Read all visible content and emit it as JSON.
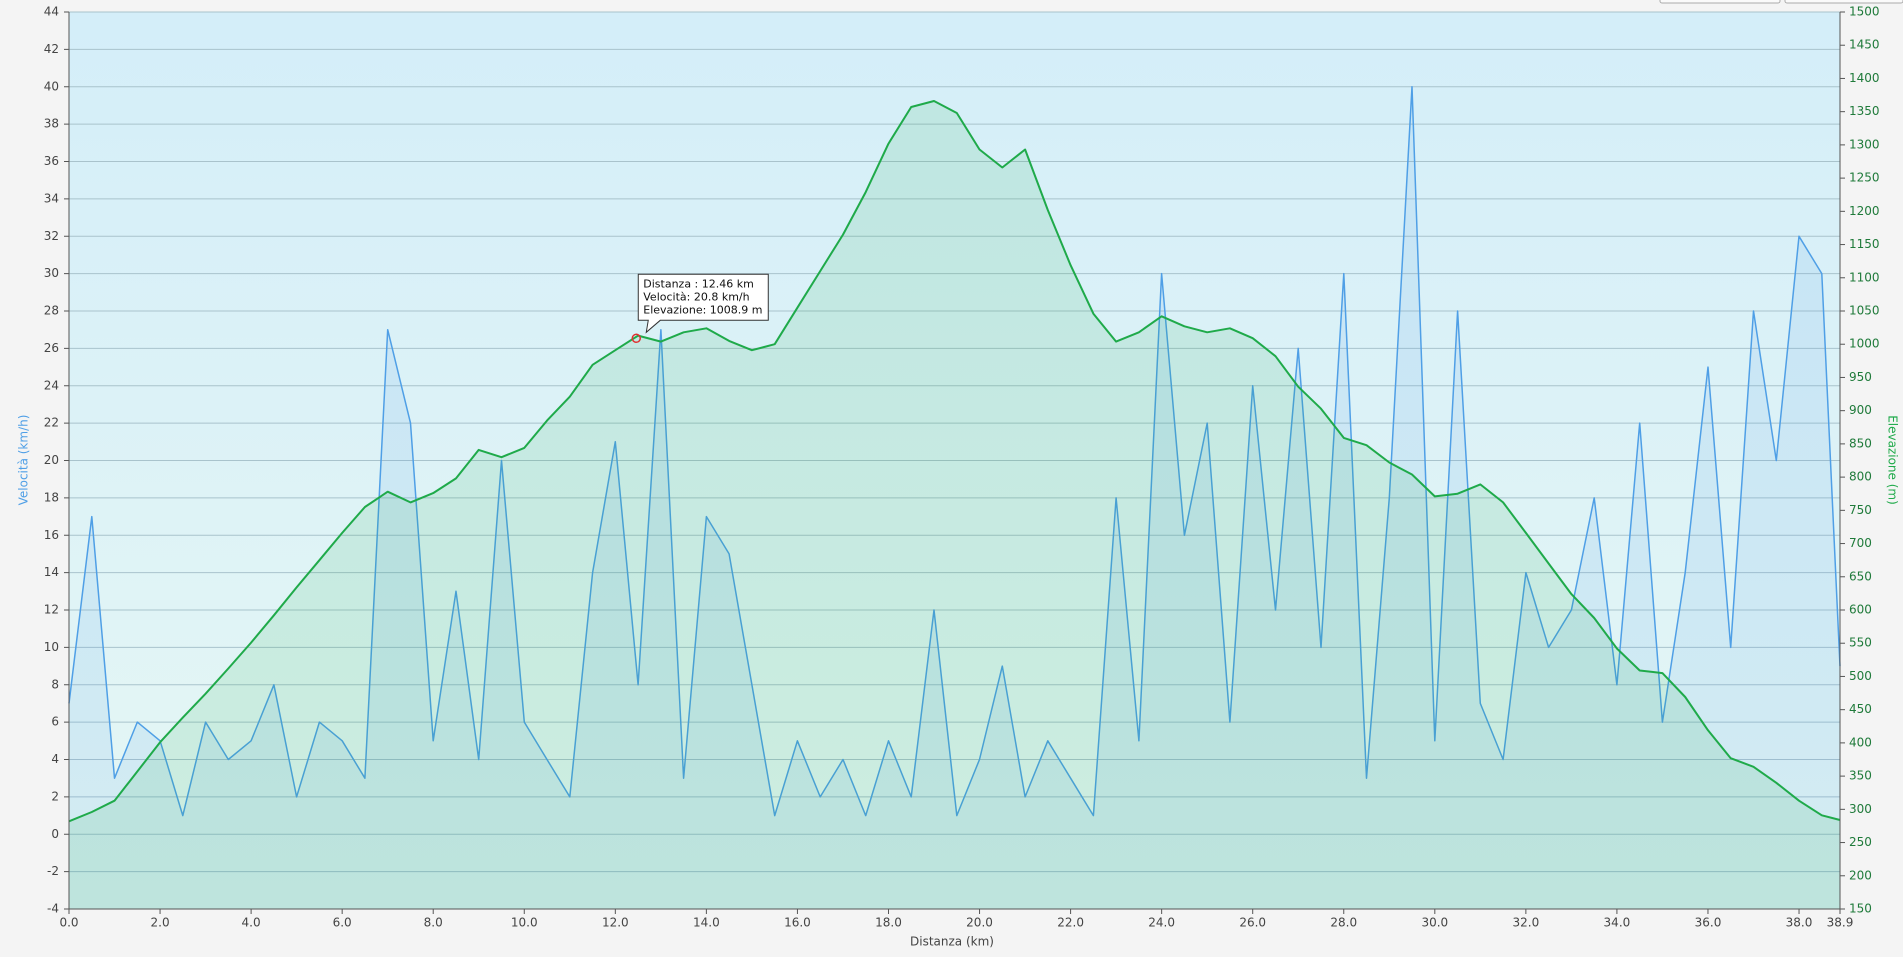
{
  "chart_data": {
    "type": "line",
    "x_label": "Distanza  (km)",
    "y_label": "Velocità (km/h)",
    "y2_label": "Elevazione (m)",
    "x": [
      0,
      0.5,
      1,
      1.5,
      2,
      2.5,
      3,
      3.5,
      4,
      4.5,
      5,
      5.5,
      6,
      6.5,
      7,
      7.5,
      8,
      8.5,
      9,
      9.5,
      10,
      10.5,
      11,
      11.5,
      12,
      12.5,
      13,
      13.5,
      14,
      14.5,
      15,
      15.5,
      16,
      16.5,
      17,
      17.5,
      18,
      18.5,
      19,
      19.5,
      20,
      20.5,
      21,
      21.5,
      22,
      22.5,
      23,
      23.5,
      24,
      24.5,
      25,
      25.5,
      26,
      26.5,
      27,
      27.5,
      28,
      28.5,
      29,
      29.5,
      30,
      30.5,
      31,
      31.5,
      32,
      32.5,
      33,
      33.5,
      34,
      34.5,
      35,
      35.5,
      36,
      36.5,
      37,
      37.5,
      38,
      38.5,
      38.9
    ],
    "series": [
      {
        "name": "Velocità",
        "color": "#4f9fe6",
        "axis": "y",
        "values": [
          7,
          17,
          3,
          6,
          5,
          1,
          6,
          4,
          5,
          8,
          2,
          6,
          5,
          3,
          27,
          22,
          5,
          13,
          4,
          20,
          6,
          4,
          2,
          14,
          21,
          8,
          27,
          3,
          17,
          15,
          8,
          1,
          5,
          2,
          4,
          1,
          5,
          2,
          12,
          1,
          4,
          9,
          2,
          5,
          3,
          1,
          18,
          5,
          30,
          16,
          22,
          6,
          24,
          12,
          26,
          10,
          30,
          3,
          18,
          40,
          5,
          28,
          7,
          4,
          14,
          10,
          12,
          18,
          8,
          22,
          6,
          14,
          25,
          10,
          28,
          20,
          32,
          30,
          9
        ]
      },
      {
        "name": "Elevazione",
        "color": "#1faa4a",
        "axis": "y2",
        "values": [
          282,
          296,
          313,
          357,
          401,
          438,
          474,
          512,
          551,
          592,
          634,
          675,
          716,
          755,
          778,
          762,
          776,
          798,
          841,
          830,
          844,
          885,
          921,
          969,
          991,
          1013,
          1004,
          1018,
          1024,
          1005,
          991,
          1000,
          1055,
          1110,
          1165,
          1229,
          1302,
          1357,
          1366,
          1348,
          1293,
          1266,
          1293,
          1202,
          1119,
          1046,
          1004,
          1018,
          1042,
          1027,
          1018,
          1024,
          1009,
          982,
          936,
          903,
          859,
          848,
          822,
          804,
          771,
          775,
          789,
          762,
          716,
          670,
          624,
          588,
          542,
          509,
          505,
          469,
          419,
          377,
          364,
          340,
          313,
          291,
          284
        ]
      }
    ],
    "xlim": [
      0,
      38.9
    ],
    "xticks": [
      {
        "value": 0,
        "label": "0.0"
      },
      {
        "value": 2,
        "label": "2.0"
      },
      {
        "value": 4,
        "label": "4.0"
      },
      {
        "value": 6,
        "label": "6.0"
      },
      {
        "value": 8,
        "label": "8.0"
      },
      {
        "value": 10,
        "label": "10.0"
      },
      {
        "value": 12,
        "label": "12.0"
      },
      {
        "value": 14,
        "label": "14.0"
      },
      {
        "value": 16,
        "label": "16.0"
      },
      {
        "value": 18,
        "label": "18.0"
      },
      {
        "value": 20,
        "label": "20.0"
      },
      {
        "value": 22,
        "label": "22.0"
      },
      {
        "value": 24,
        "label": "24.0"
      },
      {
        "value": 26,
        "label": "26.0"
      },
      {
        "value": 28,
        "label": "28.0"
      },
      {
        "value": 30,
        "label": "30.0"
      },
      {
        "value": 32,
        "label": "32.0"
      },
      {
        "value": 34,
        "label": "34.0"
      },
      {
        "value": 36,
        "label": "36.0"
      },
      {
        "value": 38,
        "label": "38.0"
      },
      {
        "value": 38.9,
        "label": "38.9"
      }
    ],
    "ylim": [
      -4,
      44
    ],
    "yticks": [
      -4,
      -2,
      0,
      2,
      4,
      6,
      8,
      10,
      12,
      14,
      16,
      18,
      20,
      22,
      24,
      26,
      28,
      30,
      32,
      34,
      36,
      38,
      40,
      42,
      44
    ],
    "y2lim": [
      150,
      1500
    ],
    "y2ticks": [
      150,
      200,
      250,
      300,
      350,
      400,
      450,
      500,
      550,
      600,
      650,
      700,
      750,
      800,
      850,
      900,
      950,
      1000,
      1050,
      1100,
      1150,
      1200,
      1250,
      1300,
      1350,
      1400,
      1450,
      1500
    ],
    "grid": true,
    "tooltip": {
      "x": 12.46,
      "y": 1008.9,
      "lines": [
        "Distanza : 12.46 km",
        "Velocità: 20.8 km/h",
        "Elevazione: 1008.9 m"
      ]
    }
  }
}
